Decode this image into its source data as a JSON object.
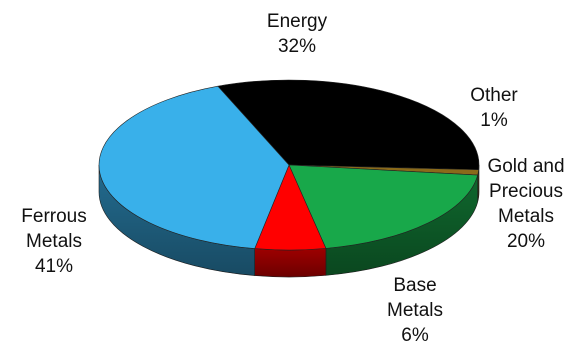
{
  "chart_data": {
    "type": "pie",
    "style": "3d",
    "slices": [
      {
        "label": "Energy",
        "value": 32,
        "value_label": "32%",
        "color": "#000000"
      },
      {
        "label": "Other",
        "value": 1,
        "value_label": "1%",
        "color": "#8a6a1a"
      },
      {
        "label": "Gold and Precious Metals",
        "label_lines": [
          "Gold and",
          "Precious",
          "Metals"
        ],
        "value": 20,
        "value_label": "20%",
        "color": "#18a84a"
      },
      {
        "label": "Base Metals",
        "label_lines": [
          "Base",
          "Metals"
        ],
        "value": 6,
        "value_label": "6%",
        "color": "#ff0000"
      },
      {
        "label": "Ferrous Metals",
        "label_lines": [
          "Ferrous",
          "Metals"
        ],
        "value": 41,
        "value_label": "41%",
        "color": "#39b0ea"
      }
    ],
    "legend": "none"
  }
}
